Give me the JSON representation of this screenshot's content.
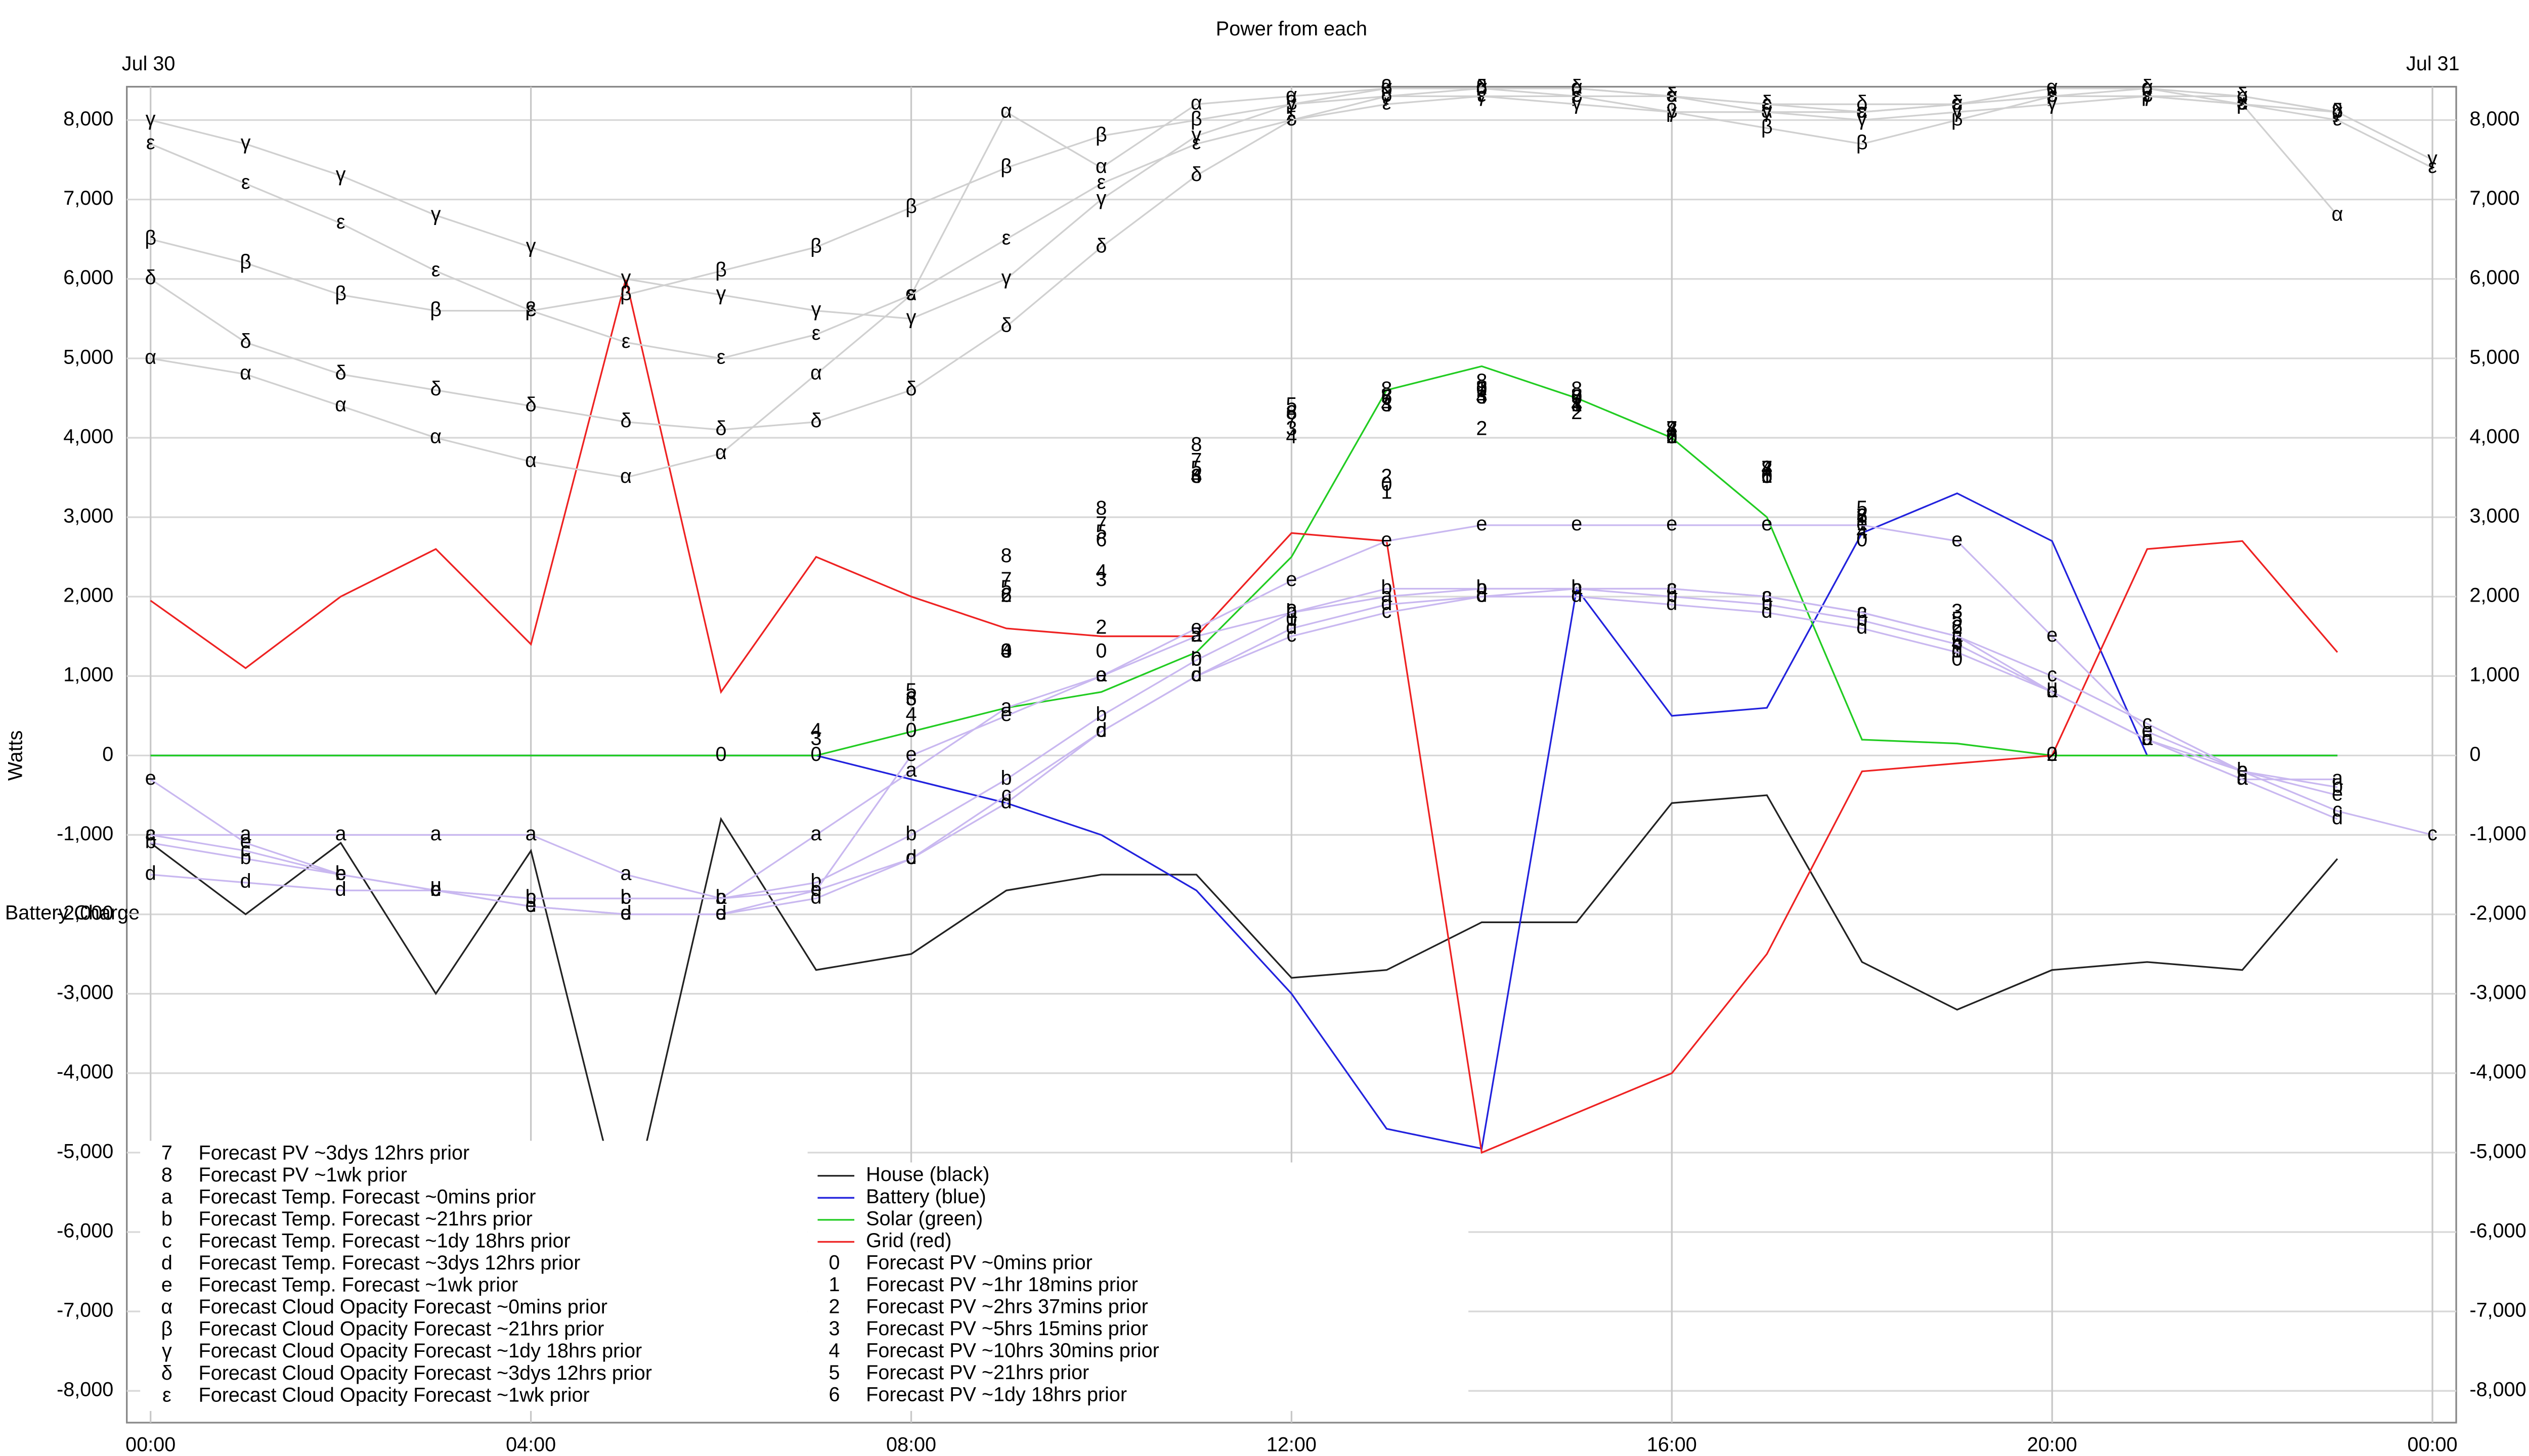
{
  "chart_data": {
    "type": "line",
    "title": "Power from each",
    "ylabel": "Watts",
    "grid": true,
    "annotations": [
      "Jul 30",
      "Jul 31",
      "Battery Charge"
    ],
    "x": [
      0,
      1,
      2,
      3,
      4,
      5,
      6,
      7,
      8,
      9,
      10,
      11,
      12,
      13,
      14,
      15,
      16,
      17,
      18,
      19,
      20,
      21,
      22,
      23,
      24
    ],
    "xlim": [
      -0.25,
      24.25
    ],
    "xticks": [
      {
        "value": 0,
        "label": "00:00"
      },
      {
        "value": 4,
        "label": "04:00"
      },
      {
        "value": 8,
        "label": "08:00"
      },
      {
        "value": 12,
        "label": "12:00"
      },
      {
        "value": 16,
        "label": "16:00"
      },
      {
        "value": 20,
        "label": "20:00"
      },
      {
        "value": 24,
        "label": "00:00"
      }
    ],
    "ylim": [
      -8400,
      8420
    ],
    "yticks": [
      {
        "value": -8000,
        "label": "-8,000"
      },
      {
        "value": -7000,
        "label": "-7,000"
      },
      {
        "value": -6000,
        "label": "-6,000"
      },
      {
        "value": -5000,
        "label": "-5,000"
      },
      {
        "value": -4000,
        "label": "-4,000"
      },
      {
        "value": -3000,
        "label": "-3,000"
      },
      {
        "value": -2000,
        "label": "-2,000"
      },
      {
        "value": -1000,
        "label": "-1,000"
      },
      0,
      {
        "value": 1000,
        "label": "1,000"
      },
      {
        "value": 2000,
        "label": "2,000"
      },
      {
        "value": 3000,
        "label": "3,000"
      },
      {
        "value": 4000,
        "label": "4,000"
      },
      {
        "value": 5000,
        "label": "5,000"
      },
      {
        "value": 6000,
        "label": "6,000"
      },
      {
        "value": 7000,
        "label": "7,000"
      },
      {
        "value": 8000,
        "label": "8,000"
      }
    ],
    "series": [
      {
        "name": "House (black)",
        "color": "#222222",
        "values": [
          -1100,
          -2000,
          -1100,
          -3000,
          -1200,
          -6000,
          -800,
          -2700,
          -2500,
          -1700,
          -1500,
          -1500,
          -2800,
          -2700,
          -2100,
          -2100,
          -600,
          -500,
          -2600,
          -3200,
          -2700,
          -2600,
          -2700,
          -1300,
          null
        ]
      },
      {
        "name": "Battery (blue)",
        "color": "#2222dd",
        "values": [
          0,
          0,
          0,
          0,
          0,
          0,
          0,
          0,
          -300,
          -600,
          -1000,
          -1700,
          -3000,
          -4700,
          -4950,
          2100,
          500,
          600,
          2800,
          3300,
          2700,
          0,
          0,
          0,
          null
        ]
      },
      {
        "name": "Solar (green)",
        "color": "#22cc22",
        "values": [
          0,
          0,
          0,
          0,
          0,
          0,
          0,
          0,
          300,
          600,
          800,
          1300,
          2500,
          4600,
          4900,
          4500,
          4000,
          3000,
          200,
          150,
          0,
          0,
          0,
          0,
          null
        ]
      },
      {
        "name": "Grid (red)",
        "color": "#ee2222",
        "values": [
          1950,
          1100,
          2000,
          2600,
          1400,
          6000,
          800,
          2500,
          2000,
          1600,
          1500,
          1500,
          2800,
          2700,
          -5000,
          -4500,
          -4000,
          -2500,
          -200,
          -100,
          0,
          2600,
          2700,
          1300,
          null
        ]
      },
      {
        "name": "Forecast PV ~0mins prior",
        "marker": "0",
        "line": false,
        "color": "#000000",
        "values": [
          null,
          null,
          null,
          null,
          null,
          null,
          0,
          0,
          300,
          1300,
          1300,
          1200,
          1700,
          3400,
          4600,
          4500,
          4000,
          3500,
          2700,
          1200,
          0,
          null,
          null,
          null,
          null
        ]
      },
      {
        "name": "Forecast PV ~1hr 18mins prior",
        "marker": "1",
        "line": false,
        "color": "#000000",
        "values": [
          null,
          null,
          null,
          null,
          null,
          null,
          null,
          null,
          null,
          null,
          null,
          null,
          1700,
          3300,
          4600,
          4400,
          4000,
          3500,
          2900,
          1300,
          null,
          null,
          null,
          null,
          null
        ]
      },
      {
        "name": "Forecast PV ~2hrs 37mins prior",
        "marker": "2",
        "line": false,
        "color": "#000000",
        "values": [
          null,
          null,
          null,
          null,
          null,
          null,
          null,
          null,
          null,
          2000,
          1600,
          1500,
          1800,
          3500,
          4100,
          4300,
          4000,
          3600,
          3000,
          1600,
          0,
          null,
          null,
          null,
          null
        ]
      },
      {
        "name": "Forecast PV ~5hrs 15mins prior",
        "marker": "3",
        "line": false,
        "color": "#000000",
        "values": [
          null,
          null,
          null,
          null,
          null,
          null,
          null,
          200,
          700,
          1300,
          2200,
          3500,
          4100,
          4400,
          4500,
          4400,
          4100,
          3600,
          3000,
          1800,
          null,
          null,
          null,
          null,
          null
        ]
      },
      {
        "name": "Forecast PV ~10hrs 30mins prior",
        "marker": "4",
        "line": false,
        "color": "#000000",
        "values": [
          null,
          null,
          null,
          null,
          null,
          null,
          null,
          300,
          500,
          1300,
          2300,
          3500,
          4000,
          4400,
          4500,
          4400,
          4100,
          3600,
          2800,
          1400,
          null,
          null,
          null,
          null,
          null
        ]
      },
      {
        "name": "Forecast PV ~21hrs prior",
        "marker": "5",
        "line": false,
        "color": "#000000",
        "values": [
          null,
          null,
          null,
          null,
          null,
          null,
          null,
          null,
          800,
          2100,
          2800,
          3600,
          4400,
          4500,
          4500,
          4500,
          4000,
          3500,
          3100,
          1700,
          null,
          null,
          null,
          null,
          null
        ]
      },
      {
        "name": "Forecast PV ~1dy 18hrs prior",
        "marker": "6",
        "line": false,
        "color": "#000000",
        "values": [
          null,
          null,
          null,
          null,
          null,
          null,
          null,
          null,
          700,
          2000,
          2700,
          3500,
          4300,
          4500,
          4600,
          4500,
          4000,
          3500,
          3000,
          1600,
          null,
          null,
          null,
          null,
          null
        ]
      },
      {
        "name": "Forecast PV ~3dys 12hrs prior",
        "marker": "7",
        "line": false,
        "color": "#000000",
        "values": [
          null,
          null,
          null,
          null,
          null,
          null,
          null,
          null,
          null,
          2200,
          2900,
          3700,
          4200,
          4500,
          4600,
          4500,
          4100,
          3600,
          3000,
          null,
          null,
          null,
          null,
          null,
          null
        ]
      },
      {
        "name": "Forecast PV ~1wk prior",
        "marker": "8",
        "line": false,
        "color": "#000000",
        "values": [
          null,
          null,
          null,
          null,
          null,
          null,
          null,
          null,
          null,
          2500,
          3100,
          3900,
          4300,
          4600,
          4700,
          4600,
          4100,
          3600,
          3000,
          null,
          null,
          null,
          null,
          null,
          null
        ]
      },
      {
        "name": "Forecast Temp. Forecast ~0mins prior",
        "marker": "a",
        "color": "#c9b8f0",
        "values": [
          -1000,
          -1000,
          -1000,
          -1000,
          -1000,
          -1500,
          -1800,
          -1000,
          -200,
          600,
          1000,
          1500,
          1800,
          2000,
          2100,
          2100,
          2100,
          2000,
          1800,
          1500,
          800,
          200,
          -300,
          -300,
          null
        ]
      },
      {
        "name": "Forecast Temp. Forecast ~21hrs prior",
        "marker": "b",
        "color": "#c9b8f0",
        "values": [
          -1100,
          -1300,
          -1500,
          -1700,
          -1800,
          -1800,
          -1800,
          -1600,
          -1000,
          -300,
          500,
          1200,
          1800,
          2100,
          2100,
          2100,
          2000,
          1900,
          1700,
          1400,
          800,
          200,
          -200,
          -400,
          null
        ]
      },
      {
        "name": "Forecast Temp. Forecast ~1dy 18hrs prior",
        "marker": "c",
        "color": "#c9b8f0",
        "values": [
          -1000,
          -1200,
          -1500,
          -1700,
          -1800,
          -1800,
          -1800,
          -1700,
          -1300,
          -500,
          300,
          1000,
          1500,
          1800,
          2000,
          2100,
          2100,
          2000,
          1800,
          1500,
          1000,
          400,
          -200,
          -700,
          -1000
        ]
      },
      {
        "name": "Forecast Temp. Forecast ~3dys 12hrs prior",
        "marker": "d",
        "color": "#c9b8f0",
        "values": [
          -1500,
          -1600,
          -1700,
          -1700,
          -1900,
          -2000,
          -2000,
          -1800,
          -1300,
          -600,
          300,
          1000,
          1600,
          1900,
          2000,
          2000,
          1900,
          1800,
          1600,
          1300,
          800,
          200,
          -300,
          -800,
          null
        ]
      },
      {
        "name": "Forecast Temp. Forecast ~1wk prior",
        "marker": "e",
        "color": "#c9b8f0",
        "values": [
          -300,
          -1100,
          -1500,
          -1700,
          -1900,
          -2000,
          -2000,
          -1700,
          0,
          500,
          1000,
          1600,
          2200,
          2700,
          2900,
          2900,
          2900,
          2900,
          2900,
          2700,
          1500,
          300,
          -200,
          -500,
          null
        ]
      },
      {
        "name": "Forecast Cloud Opacity Forecast ~0mins prior",
        "marker": "α",
        "color": "#d0d0d0",
        "values": [
          5000,
          4800,
          4400,
          4000,
          3700,
          3500,
          3800,
          4800,
          5800,
          8100,
          7400,
          8200,
          8300,
          8400,
          8400,
          8400,
          8300,
          8100,
          8100,
          8200,
          8400,
          8400,
          8200,
          6800,
          null
        ]
      },
      {
        "name": "Forecast Cloud Opacity Forecast ~21hrs prior",
        "marker": "β",
        "color": "#d0d0d0",
        "values": [
          6500,
          6200,
          5800,
          5600,
          5600,
          5800,
          6100,
          6400,
          6900,
          7400,
          7800,
          8000,
          8200,
          8400,
          8400,
          8300,
          8100,
          7900,
          7700,
          8000,
          8300,
          8300,
          8200,
          8100,
          null
        ]
      },
      {
        "name": "Forecast Cloud Opacity Forecast ~1dy 18hrs prior",
        "marker": "γ",
        "color": "#d0d0d0",
        "values": [
          8000,
          7700,
          7300,
          6800,
          6400,
          6000,
          5800,
          5600,
          5500,
          6000,
          7000,
          7800,
          8200,
          8300,
          8300,
          8200,
          8100,
          8100,
          8000,
          8100,
          8200,
          8300,
          8300,
          8100,
          7500
        ]
      },
      {
        "name": "Forecast Cloud Opacity Forecast ~3dys 12hrs prior",
        "marker": "δ",
        "color": "#d0d0d0",
        "values": [
          6000,
          5200,
          4800,
          4600,
          4400,
          4200,
          4100,
          4200,
          4600,
          5400,
          6400,
          7300,
          8000,
          8300,
          8400,
          8400,
          8300,
          8200,
          8200,
          8200,
          8300,
          8400,
          8300,
          8100,
          null
        ]
      },
      {
        "name": "Forecast Cloud Opacity Forecast ~1wk prior",
        "marker": "ε",
        "color": "#d0d0d0",
        "values": [
          7700,
          7200,
          6700,
          6100,
          5600,
          5200,
          5000,
          5300,
          5800,
          6500,
          7200,
          7700,
          8000,
          8200,
          8300,
          8300,
          8300,
          8200,
          8100,
          8200,
          8300,
          8300,
          8200,
          8000,
          7400
        ]
      }
    ]
  }
}
